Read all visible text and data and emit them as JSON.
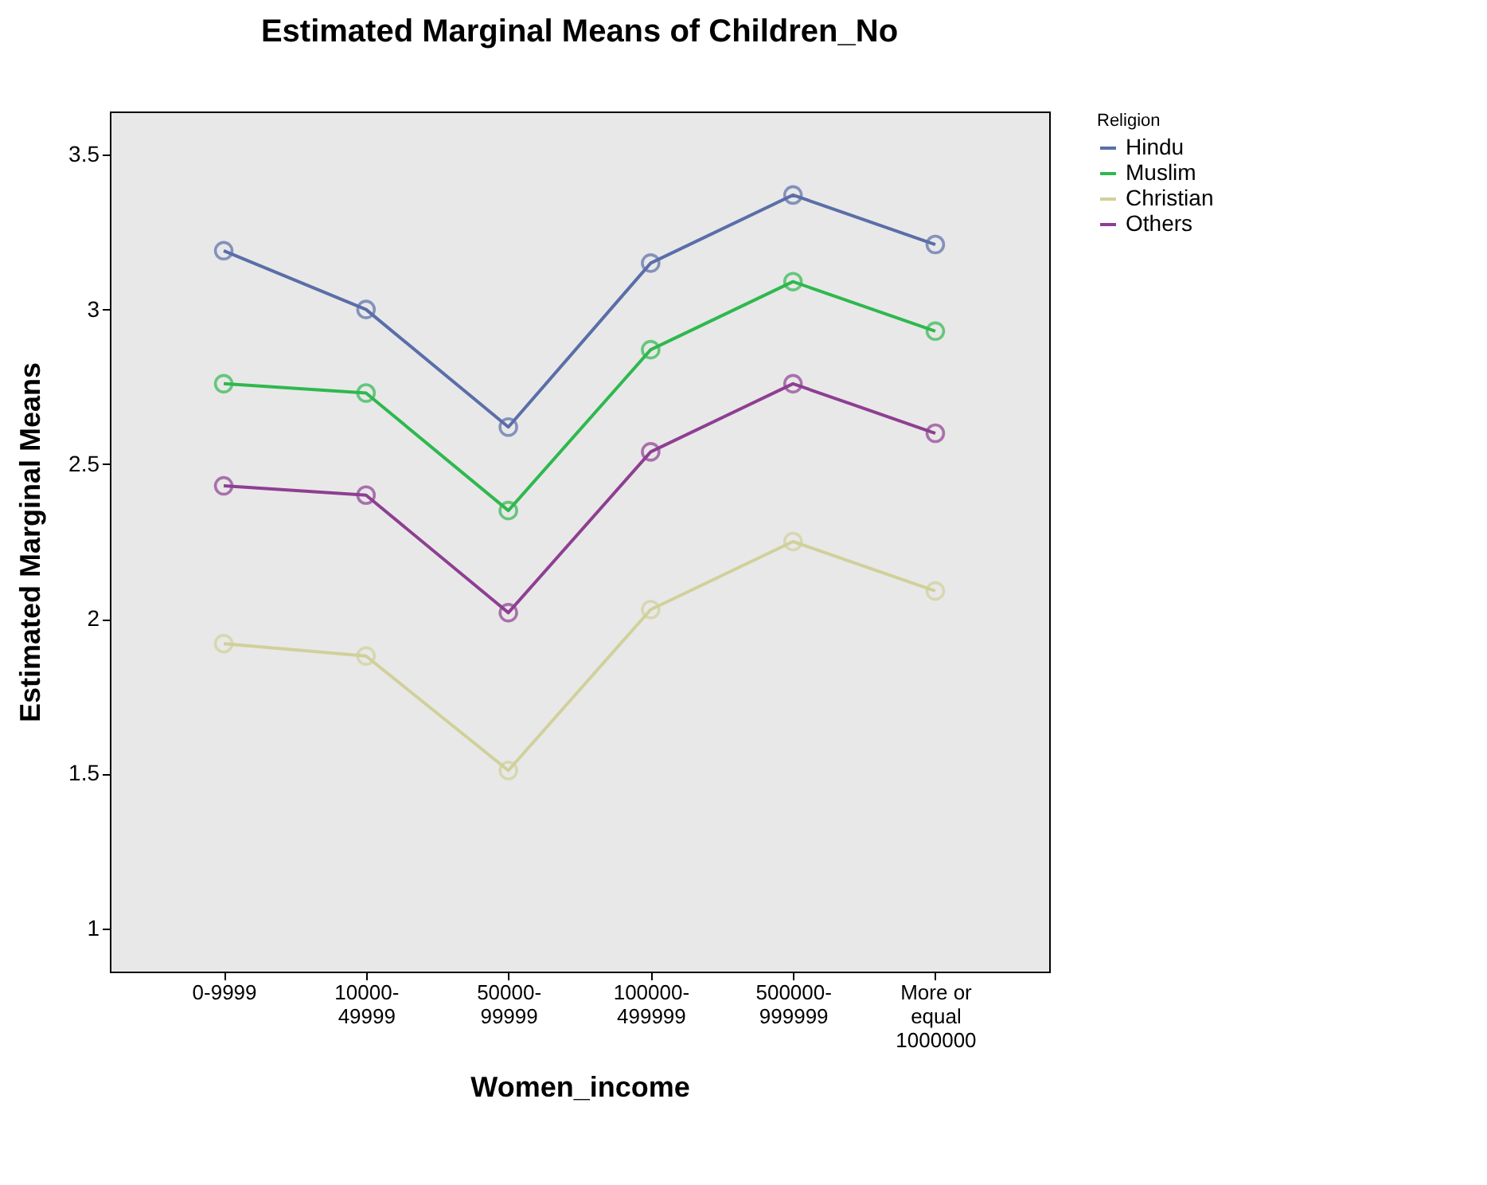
{
  "chart_data": {
    "type": "line",
    "title": "Estimated Marginal Means of Children_No",
    "xlabel": "Women_income",
    "ylabel": "Estimated Marginal Means",
    "legend_title": "Religion",
    "categories": [
      "0-9999",
      "10000-\n49999",
      "50000-\n99999",
      "100000-\n499999",
      "500000-\n999999",
      "More or\nequal\n1000000"
    ],
    "series": [
      {
        "name": "Hindu",
        "color": "#5a6ea8",
        "values": [
          3.19,
          3.0,
          2.62,
          3.15,
          3.37,
          3.21
        ]
      },
      {
        "name": "Muslim",
        "color": "#2fb84e",
        "values": [
          2.76,
          2.73,
          2.35,
          2.87,
          3.09,
          2.93
        ]
      },
      {
        "name": "Christian",
        "color": "#d0d09a",
        "values": [
          1.92,
          1.88,
          1.51,
          2.03,
          2.25,
          2.09
        ]
      },
      {
        "name": "Others",
        "color": "#8e3f92",
        "values": [
          2.43,
          2.4,
          2.02,
          2.54,
          2.76,
          2.6
        ]
      }
    ],
    "ylim": [
      0.86,
      3.64
    ],
    "yticks": [
      1,
      1.5,
      2,
      2.5,
      3,
      3.5
    ],
    "grid": false,
    "legend": "right",
    "marker": "circle",
    "line_style": "solid"
  }
}
